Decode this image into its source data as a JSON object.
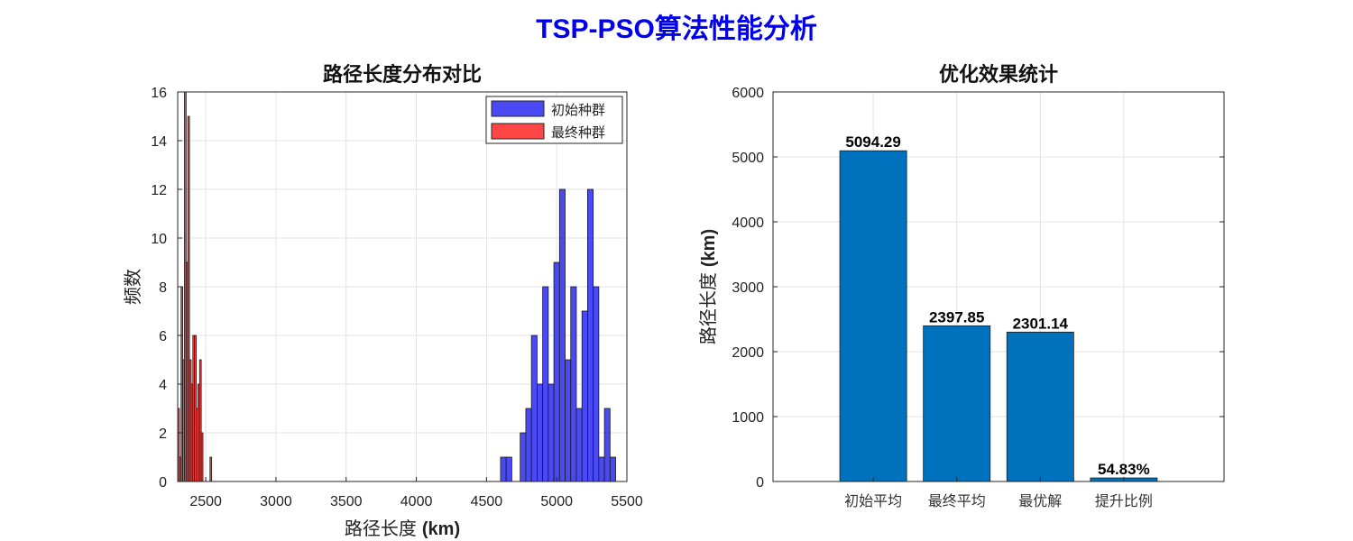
{
  "figure_title": "TSP-PSO算法性能分析",
  "chart_data": [
    {
      "type": "histogram",
      "title": "路径长度分布对比",
      "xlabel_cn": "路径长度",
      "xlabel_unit": "(km)",
      "ylabel": "频数",
      "xlim": [
        2300,
        5500
      ],
      "ylim": [
        0,
        16
      ],
      "xticks": [
        2500,
        3000,
        3500,
        4000,
        4500,
        5000,
        5500
      ],
      "yticks": [
        0,
        2,
        4,
        6,
        8,
        10,
        12,
        14,
        16
      ],
      "grid": true,
      "legend_position": "top-right",
      "series": [
        {
          "name": "初始种群",
          "color": "#4a4af5",
          "bins": [
            {
              "x0": 4600,
              "x1": 4640,
              "count": 1
            },
            {
              "x0": 4640,
              "x1": 4680,
              "count": 1
            },
            {
              "x0": 4740,
              "x1": 4780,
              "count": 2
            },
            {
              "x0": 4780,
              "x1": 4820,
              "count": 3
            },
            {
              "x0": 4820,
              "x1": 4860,
              "count": 6
            },
            {
              "x0": 4860,
              "x1": 4900,
              "count": 4
            },
            {
              "x0": 4900,
              "x1": 4940,
              "count": 8
            },
            {
              "x0": 4940,
              "x1": 4980,
              "count": 4
            },
            {
              "x0": 4980,
              "x1": 5020,
              "count": 9
            },
            {
              "x0": 5020,
              "x1": 5060,
              "count": 12
            },
            {
              "x0": 5060,
              "x1": 5100,
              "count": 5
            },
            {
              "x0": 5100,
              "x1": 5140,
              "count": 8
            },
            {
              "x0": 5140,
              "x1": 5180,
              "count": 3
            },
            {
              "x0": 5180,
              "x1": 5220,
              "count": 7
            },
            {
              "x0": 5220,
              "x1": 5260,
              "count": 12
            },
            {
              "x0": 5260,
              "x1": 5300,
              "count": 8
            },
            {
              "x0": 5300,
              "x1": 5340,
              "count": 1
            },
            {
              "x0": 5340,
              "x1": 5380,
              "count": 3
            },
            {
              "x0": 5380,
              "x1": 5420,
              "count": 1
            }
          ]
        },
        {
          "name": "最终种群",
          "color": "#ff4646",
          "bins": [
            {
              "x0": 2300,
              "x1": 2312,
              "count": 3
            },
            {
              "x0": 2312,
              "x1": 2324,
              "count": 1
            },
            {
              "x0": 2324,
              "x1": 2336,
              "count": 8
            },
            {
              "x0": 2336,
              "x1": 2348,
              "count": 5
            },
            {
              "x0": 2348,
              "x1": 2360,
              "count": 16
            },
            {
              "x0": 2360,
              "x1": 2372,
              "count": 9
            },
            {
              "x0": 2372,
              "x1": 2384,
              "count": 15
            },
            {
              "x0": 2384,
              "x1": 2396,
              "count": 5
            },
            {
              "x0": 2396,
              "x1": 2408,
              "count": 4
            },
            {
              "x0": 2408,
              "x1": 2420,
              "count": 6
            },
            {
              "x0": 2420,
              "x1": 2432,
              "count": 6
            },
            {
              "x0": 2432,
              "x1": 2444,
              "count": 3
            },
            {
              "x0": 2444,
              "x1": 2456,
              "count": 4
            },
            {
              "x0": 2456,
              "x1": 2468,
              "count": 5
            },
            {
              "x0": 2468,
              "x1": 2480,
              "count": 2
            },
            {
              "x0": 2530,
              "x1": 2542,
              "count": 1
            }
          ]
        }
      ]
    },
    {
      "type": "bar",
      "title": "优化效果统计",
      "ylabel_cn": "路径长度",
      "ylabel_unit": "(km)",
      "categories": [
        "初始平均",
        "最终平均",
        "最优解",
        "提升比例"
      ],
      "values": [
        5094.29,
        2397.85,
        2301.14,
        54.83
      ],
      "labels": [
        "5094.29",
        "2397.85",
        "2301.14",
        "54.83%"
      ],
      "ylim": [
        0,
        6000
      ],
      "yticks": [
        0,
        1000,
        2000,
        3000,
        4000,
        5000,
        6000
      ],
      "bar_color": "#0072bd",
      "grid": true
    }
  ]
}
